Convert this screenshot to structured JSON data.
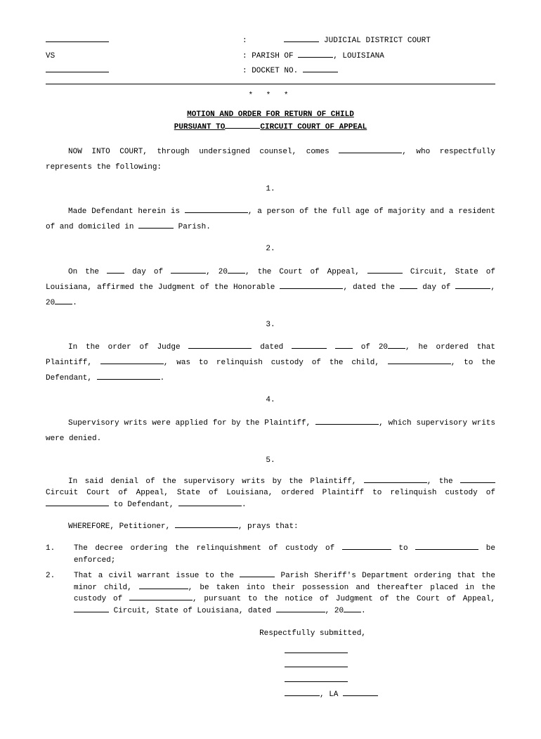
{
  "header": {
    "court_suffix": "JUDICIAL DISTRICT COURT",
    "vs": "VS",
    "parish_prefix": ": PARISH OF",
    "state": ", LOUISIANA",
    "docket_prefix": ": DOCKET NO."
  },
  "stars": "* * *",
  "title": {
    "line1": "MOTION AND ORDER FOR RETURN OF CHILD",
    "line2_a": "PURSUANT TO",
    "line2_b": "CIRCUIT COURT OF APPEAL"
  },
  "intro": {
    "a": "NOW INTO COURT, through undersigned counsel, comes ",
    "b": ", who respectfully represents the following:"
  },
  "num1": "1.",
  "p1": {
    "a": "Made Defendant herein is ",
    "b": ", a person of the full age of majority and a resident of and domiciled in ",
    "c": " Parish."
  },
  "num2": "2.",
  "p2": {
    "a": "On the ",
    "b": " day of ",
    "c": ", 20",
    "d": ", the Court of Appeal, ",
    "e": " Circuit, State of Louisiana, affirmed the Judgment of the Honorable ",
    "f": ", dated the ",
    "g": " day of ",
    "h": ", 20",
    "i": "."
  },
  "num3": "3.",
  "p3": {
    "a": "In the order of Judge ",
    "b": " dated ",
    "c": " of 20",
    "d": ", he ordered that Plaintiff, ",
    "e": ", was to relinquish custody of the child, ",
    "f": ", to the Defendant, ",
    "g": "."
  },
  "num4": "4.",
  "p4": {
    "a": "Supervisory writs were applied for by the Plaintiff, ",
    "b": ", which supervisory writs were denied."
  },
  "num5": "5.",
  "p5": {
    "a": "In said denial of the supervisory writs by the Plaintiff, ",
    "b": ", the ",
    "c": " Circuit Court of Appeal, State of Louisiana, ordered Plaintiff to relinquish custody of ",
    "d": " to Defendant, ",
    "e": "."
  },
  "wherefore": {
    "a": "WHEREFORE, Petitioner, ",
    "b": ", prays that:"
  },
  "list1_num": "1.",
  "list1": {
    "a": "The decree ordering the relinquishment of custody of ",
    "b": " to ",
    "c": " be enforced;"
  },
  "list2_num": "2.",
  "list2": {
    "a": "That a civil warrant issue to the ",
    "b": " Parish Sheriff's Department ordering that the minor child, ",
    "c": ", be taken into their possession and thereafter placed in the custody of ",
    "d": ", pursuant to the notice of Judgment of the  Court of Appeal, ",
    "e": " Circuit, State of Louisiana, dated ",
    "f": ", 20",
    "g": "."
  },
  "submitted": "Respectfully submitted,",
  "sig_state": ", LA "
}
